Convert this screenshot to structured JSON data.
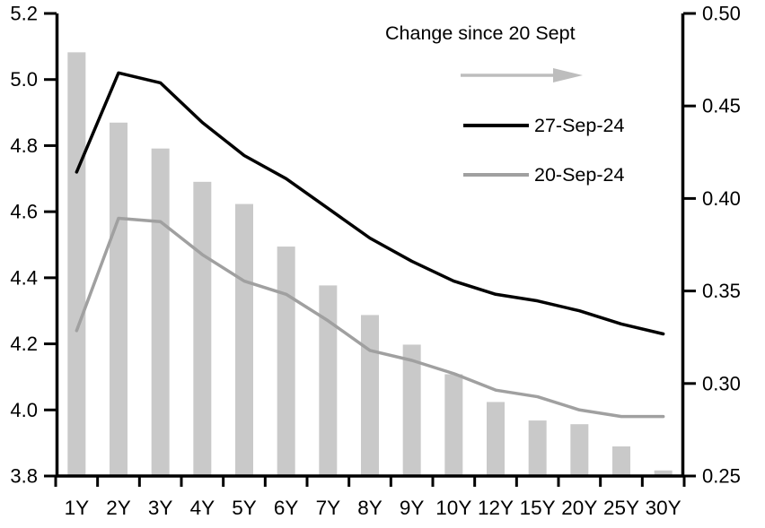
{
  "chart_data": {
    "type": "combo",
    "title": "",
    "categories": [
      "1Y",
      "2Y",
      "3Y",
      "4Y",
      "5Y",
      "6Y",
      "7Y",
      "8Y",
      "9Y",
      "10Y",
      "12Y",
      "15Y",
      "20Y",
      "25Y",
      "30Y"
    ],
    "bars": {
      "name": "Change since 20 Sept",
      "axis": "right",
      "color": "#c9c9c9",
      "values": [
        0.479,
        0.441,
        0.427,
        0.409,
        0.397,
        0.374,
        0.353,
        0.337,
        0.321,
        0.305,
        0.29,
        0.28,
        0.278,
        0.266,
        0.253
      ]
    },
    "series": [
      {
        "name": "27-Sep-24",
        "axis": "left",
        "color": "#000000",
        "values": [
          4.72,
          5.02,
          4.99,
          4.87,
          4.77,
          4.7,
          4.61,
          4.52,
          4.45,
          4.39,
          4.35,
          4.33,
          4.3,
          4.26,
          4.23
        ]
      },
      {
        "name": "20-Sep-24",
        "axis": "left",
        "color": "#a0a0a0",
        "values": [
          4.24,
          4.58,
          4.57,
          4.47,
          4.39,
          4.35,
          4.27,
          4.18,
          4.15,
          4.11,
          4.06,
          4.04,
          4.0,
          3.98,
          3.98
        ]
      }
    ],
    "left_axis": {
      "min": 3.8,
      "max": 5.2,
      "tick_values": [
        5.2,
        5.0,
        4.8,
        4.6,
        4.4,
        4.2,
        4.0,
        3.8
      ],
      "tick_labels": [
        "5.2",
        "5.0",
        "4.8",
        "4.6",
        "4.4",
        "4.2",
        "4.0",
        "3.8"
      ]
    },
    "right_axis": {
      "min": 0.25,
      "max": 0.5,
      "tick_values": [
        0.5,
        0.45,
        0.4,
        0.35,
        0.3,
        0.25
      ],
      "tick_labels": [
        "0.50",
        "0.45",
        "0.40",
        "0.35",
        "0.30",
        "0.25"
      ]
    },
    "legend": {
      "position": "top-right-inside",
      "title": "Change since 20 Sept",
      "entries": [
        "27-Sep-24",
        "20-Sep-24"
      ]
    },
    "grid": "off"
  },
  "colors": {
    "bar": "#c9c9c9",
    "line_27sep": "#000000",
    "line_20sep": "#a0a0a0",
    "arrow": "#bdbdbd",
    "axis": "#000000",
    "background": "#ffffff"
  }
}
